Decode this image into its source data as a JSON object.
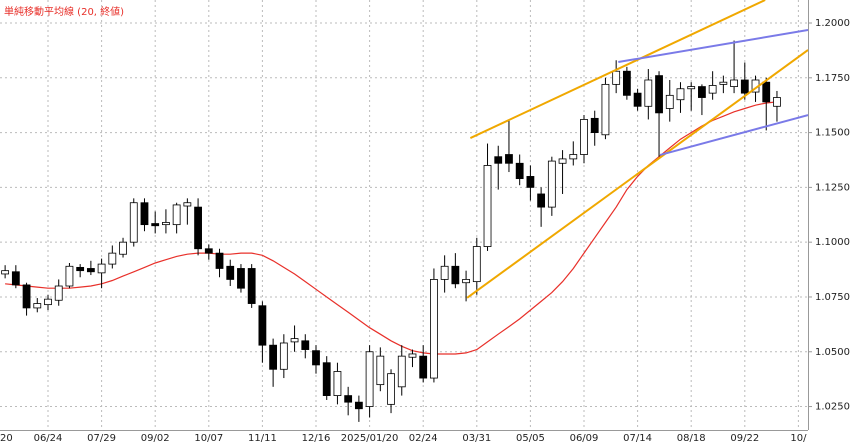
{
  "chart_data": {
    "type": "candlestick",
    "title": "単純移動平均線 (20, 終値)",
    "title_color": "#e8302a",
    "categories": [
      "20",
      null,
      null,
      null,
      null,
      "06/24",
      null,
      null,
      null,
      null,
      "07/29",
      null,
      null,
      null,
      null,
      "09/02",
      null,
      null,
      null,
      null,
      "10/07",
      null,
      null,
      null,
      null,
      "11/11",
      null,
      null,
      null,
      null,
      "12/16",
      null,
      null,
      null,
      null,
      "2025/01/20",
      null,
      null,
      null,
      null,
      "02/24",
      null,
      null,
      null,
      null,
      "03/31",
      null,
      null,
      null,
      null,
      "05/05",
      null,
      null,
      null,
      null,
      "06/09",
      null,
      null,
      null,
      null,
      "07/14",
      null,
      null,
      null,
      null,
      "08/18",
      null,
      null,
      null,
      null,
      "09/22",
      null,
      null,
      null,
      null,
      "10/"
    ],
    "open": [
      null,
      1.0855,
      1.0865,
      1.0805,
      1.07,
      1.0715,
      1.0735,
      1.08,
      1.0885,
      1.088,
      1.086,
      1.09,
      1.0945,
      1.1,
      1.118,
      1.1085,
      1.108,
      1.108,
      1.1165,
      1.116,
      1.097,
      1.095,
      1.089,
      1.088,
      1.088,
      1.071,
      1.053,
      1.042,
      1.0545,
      1.055,
      1.0505,
      1.045,
      1.03,
      1.03,
      1.027,
      1.025,
      1.035,
      1.026,
      1.034,
      1.0475,
      1.048,
      1.038,
      1.083,
      1.089,
      1.0815,
      1.082,
      1.098,
      1.139,
      1.14,
      1.136,
      1.13,
      1.122,
      1.116,
      1.136,
      1.138,
      1.14,
      1.1565,
      1.149,
      1.172,
      1.178,
      1.168,
      1.162,
      1.176,
      1.161,
      1.165,
      1.17,
      1.171,
      1.168,
      1.172,
      1.171,
      1.174,
      1.1685,
      1.173,
      1.162,
      null,
      null
    ],
    "high": [
      null,
      1.0895,
      1.0895,
      1.0815,
      1.0745,
      1.076,
      1.083,
      1.0905,
      1.09,
      1.0915,
      1.0925,
      1.0985,
      1.102,
      1.12,
      1.12,
      1.114,
      1.115,
      1.118,
      1.12,
      1.12,
      1.099,
      1.097,
      1.092,
      1.09,
      1.09,
      1.073,
      1.056,
      1.058,
      1.062,
      1.058,
      1.053,
      1.048,
      1.045,
      1.034,
      1.03,
      1.053,
      1.052,
      1.042,
      1.053,
      1.051,
      1.053,
      1.088,
      1.094,
      1.095,
      1.087,
      1.102,
      1.145,
      1.144,
      1.156,
      1.14,
      1.135,
      1.125,
      1.139,
      1.142,
      1.146,
      1.158,
      1.16,
      1.175,
      1.183,
      1.18,
      1.17,
      1.179,
      1.178,
      1.174,
      1.173,
      1.173,
      1.172,
      1.178,
      1.176,
      1.192,
      1.182,
      1.176,
      1.175,
      1.169,
      null,
      null
    ],
    "low": [
      null,
      1.0835,
      1.079,
      1.0665,
      1.068,
      1.069,
      1.071,
      1.079,
      1.084,
      1.085,
      1.079,
      1.088,
      1.093,
      1.098,
      1.105,
      1.104,
      1.104,
      1.104,
      1.108,
      1.094,
      1.092,
      1.084,
      1.08,
      1.077,
      1.07,
      1.045,
      1.034,
      1.038,
      1.05,
      1.047,
      1.04,
      1.028,
      1.026,
      1.021,
      1.018,
      1.02,
      1.032,
      1.022,
      1.03,
      1.043,
      1.036,
      1.036,
      1.077,
      1.079,
      1.073,
      1.076,
      1.096,
      1.124,
      1.132,
      1.126,
      1.119,
      1.107,
      1.112,
      1.122,
      1.135,
      1.136,
      1.144,
      1.147,
      1.168,
      1.165,
      1.16,
      1.156,
      1.139,
      1.155,
      1.159,
      1.16,
      1.158,
      1.165,
      1.168,
      1.168,
      1.165,
      1.164,
      1.151,
      1.155,
      null,
      null
    ],
    "close": [
      null,
      1.087,
      1.0805,
      1.07,
      1.072,
      1.074,
      1.08,
      1.089,
      1.087,
      1.0865,
      1.09,
      1.095,
      1.1,
      1.118,
      1.108,
      1.1075,
      1.109,
      1.117,
      1.118,
      1.097,
      1.095,
      1.088,
      1.083,
      1.079,
      1.072,
      1.053,
      1.042,
      1.054,
      1.056,
      1.051,
      1.044,
      1.03,
      1.041,
      1.027,
      1.024,
      1.05,
      1.048,
      1.04,
      1.048,
      1.049,
      1.038,
      1.083,
      1.089,
      1.081,
      1.083,
      1.098,
      1.135,
      1.136,
      1.136,
      1.129,
      1.125,
      1.116,
      1.137,
      1.138,
      1.14,
      1.156,
      1.15,
      1.172,
      1.178,
      1.167,
      1.162,
      1.174,
      1.159,
      1.167,
      1.17,
      1.171,
      1.166,
      1.1715,
      1.173,
      1.174,
      1.168,
      1.174,
      1.164,
      1.166,
      null,
      null
    ],
    "up_color": "#ffffff",
    "down_color": "#000000",
    "ma": {
      "color": "#e8302a",
      "values": [
        null,
        1.081,
        1.0805,
        1.08,
        1.0795,
        1.079,
        1.079,
        1.079,
        1.0795,
        1.08,
        1.081,
        1.0825,
        1.0845,
        1.0865,
        1.0885,
        1.0905,
        1.092,
        1.0935,
        1.0945,
        1.095,
        1.095,
        1.0945,
        1.0945,
        1.095,
        1.095,
        1.094,
        1.0915,
        1.0885,
        1.0855,
        1.082,
        1.0785,
        1.075,
        1.0715,
        1.068,
        1.0645,
        1.061,
        1.058,
        1.055,
        1.0525,
        1.0505,
        1.0495,
        1.049,
        1.049,
        1.049,
        1.0495,
        1.051,
        1.0545,
        1.058,
        1.0615,
        1.065,
        1.069,
        1.073,
        1.077,
        1.082,
        1.088,
        1.095,
        1.102,
        1.109,
        1.116,
        1.124,
        1.13,
        1.135,
        1.139,
        1.143,
        1.147,
        1.15,
        1.153,
        1.1555,
        1.1575,
        1.1595,
        1.161,
        1.1625,
        1.1635,
        1.164,
        null,
        null
      ]
    },
    "trendlines": [
      {
        "color": "#f0a800",
        "x": [
          44.4,
          71.9
        ],
        "y": [
          1.1475,
          1.2105
        ]
      },
      {
        "color": "#f0a800",
        "x": [
          44.1,
          75.9
        ],
        "y": [
          1.0746,
          1.1877
        ]
      },
      {
        "color": "#7a7ae8",
        "x": [
          58.2,
          75.9
        ],
        "y": [
          1.1822,
          1.1968
        ]
      },
      {
        "color": "#7a7ae8",
        "x": [
          62.1,
          75.9
        ],
        "y": [
          1.1398,
          1.158
        ]
      }
    ],
    "ylim": [
      1.0143,
      1.2105
    ],
    "yticks": [
      {
        "value": 1.025,
        "label": "1.02500"
      },
      {
        "value": 1.05,
        "label": "1.05000"
      },
      {
        "value": 1.075,
        "label": "1.07500"
      },
      {
        "value": 1.1,
        "label": "1.10000"
      },
      {
        "value": 1.125,
        "label": "1.12500"
      },
      {
        "value": 1.15,
        "label": "1.15000"
      },
      {
        "value": 1.175,
        "label": "1.17500"
      },
      {
        "value": 1.2,
        "label": "1.20000"
      }
    ],
    "grid": true
  }
}
